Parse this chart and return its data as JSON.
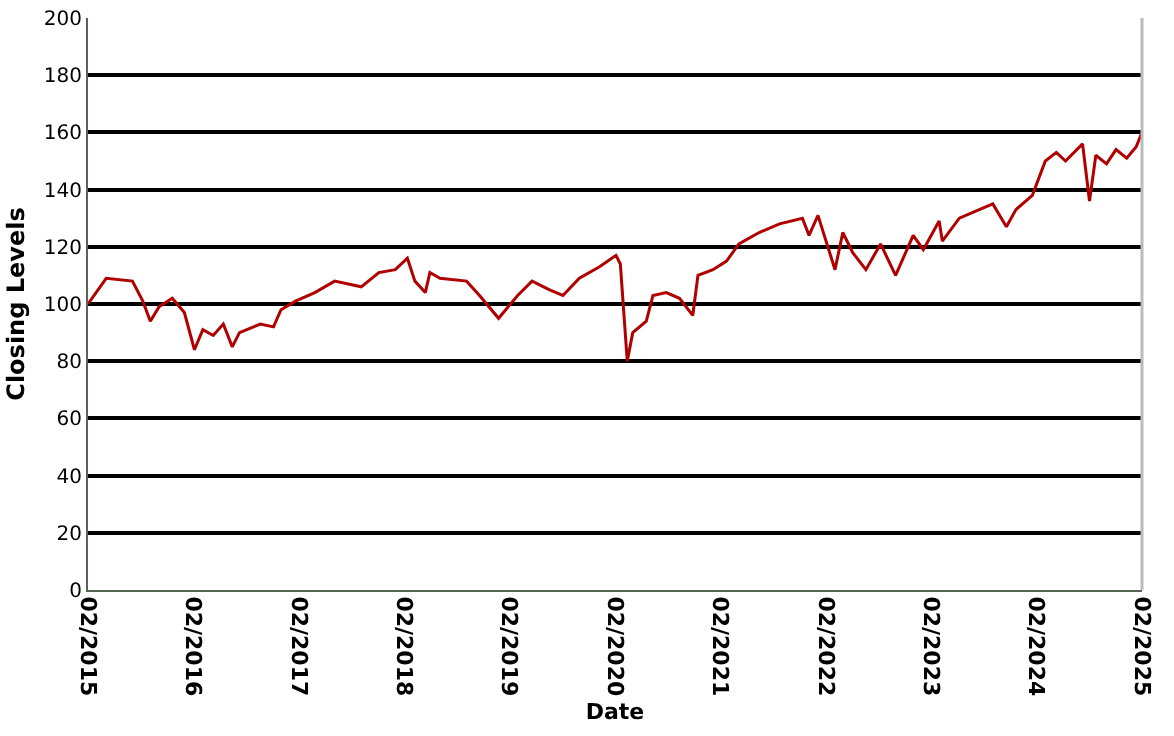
{
  "chart_data": {
    "type": "line",
    "xlabel": "Date",
    "ylabel": "Closing Levels",
    "x": [
      "2015-02-01",
      "2015-04-05",
      "2015-07-05",
      "2015-08-10",
      "2015-09-05",
      "2015-10-05",
      "2015-11-20",
      "2016-01-01",
      "2016-02-05",
      "2016-03-05",
      "2016-04-10",
      "2016-05-15",
      "2016-06-15",
      "2016-07-10",
      "2016-09-20",
      "2016-11-05",
      "2016-12-01",
      "2017-01-20",
      "2017-03-28",
      "2017-06-05",
      "2017-09-05",
      "2017-11-05",
      "2018-01-01",
      "2018-02-12",
      "2018-03-10",
      "2018-04-15",
      "2018-05-01",
      "2018-06-05",
      "2018-09-05",
      "2018-10-20",
      "2018-12-25",
      "2019-03-01",
      "2019-04-20",
      "2019-06-18",
      "2019-08-05",
      "2019-10-01",
      "2019-12-10",
      "2020-02-05",
      "2020-02-20",
      "2020-03-15",
      "2020-04-03",
      "2020-05-20",
      "2020-06-12",
      "2020-07-28",
      "2020-09-12",
      "2020-10-28",
      "2020-11-15",
      "2021-01-06",
      "2021-02-22",
      "2021-04-06",
      "2021-06-15",
      "2021-08-25",
      "2021-11-12",
      "2021-12-05",
      "2022-01-05",
      "2022-03-05",
      "2022-04-01",
      "2022-05-05",
      "2022-06-20",
      "2022-08-10",
      "2022-10-01",
      "2022-12-01",
      "2023-01-05",
      "2023-03-01",
      "2023-03-12",
      "2023-05-10",
      "2023-07-18",
      "2023-09-03",
      "2023-10-20",
      "2023-11-22",
      "2024-01-18",
      "2024-03-03",
      "2024-04-10",
      "2024-05-12",
      "2024-07-10",
      "2024-08-03",
      "2024-08-25",
      "2024-10-01",
      "2024-11-03",
      "2024-12-10",
      "2025-01-12",
      "2025-02-01"
    ],
    "series": [
      {
        "color": "#b00000",
        "values": [
          100,
          109,
          108,
          101,
          94,
          99,
          102,
          97,
          84,
          91,
          89,
          93,
          85,
          90,
          93,
          92,
          98,
          101,
          104,
          108,
          106,
          111,
          112,
          116,
          108,
          104,
          111,
          109,
          108,
          103,
          95,
          103,
          108,
          105,
          103,
          109,
          113,
          117,
          114,
          80,
          90,
          94,
          103,
          104,
          102,
          96,
          110,
          112,
          115,
          121,
          125,
          128,
          130,
          124,
          131,
          112,
          125,
          118,
          112,
          121,
          110,
          124,
          119,
          129,
          122,
          130,
          133,
          135,
          127,
          133,
          138,
          150,
          153,
          150,
          156,
          136,
          152,
          149,
          154,
          151,
          155,
          160
        ]
      }
    ],
    "xlim": [
      "2015-02-01",
      "2025-02-01"
    ],
    "xticks": [
      {
        "value": "2015-02-01",
        "label": "02/2015"
      },
      {
        "value": "2016-02-01",
        "label": "02/2016"
      },
      {
        "value": "2017-02-01",
        "label": "02/2017"
      },
      {
        "value": "2018-02-01",
        "label": "02/2018"
      },
      {
        "value": "2019-02-01",
        "label": "02/2019"
      },
      {
        "value": "2020-02-01",
        "label": "02/2020"
      },
      {
        "value": "2021-02-01",
        "label": "02/2021"
      },
      {
        "value": "2022-02-01",
        "label": "02/2022"
      },
      {
        "value": "2023-02-01",
        "label": "02/2023"
      },
      {
        "value": "2024-02-01",
        "label": "02/2024"
      },
      {
        "value": "2025-02-01",
        "label": "02/2025"
      }
    ],
    "ylim": [
      0,
      200
    ],
    "yticks": [
      0,
      20,
      40,
      60,
      80,
      100,
      120,
      140,
      160,
      180,
      200
    ],
    "grid": "y",
    "marker": "none",
    "line_style": "solid"
  }
}
